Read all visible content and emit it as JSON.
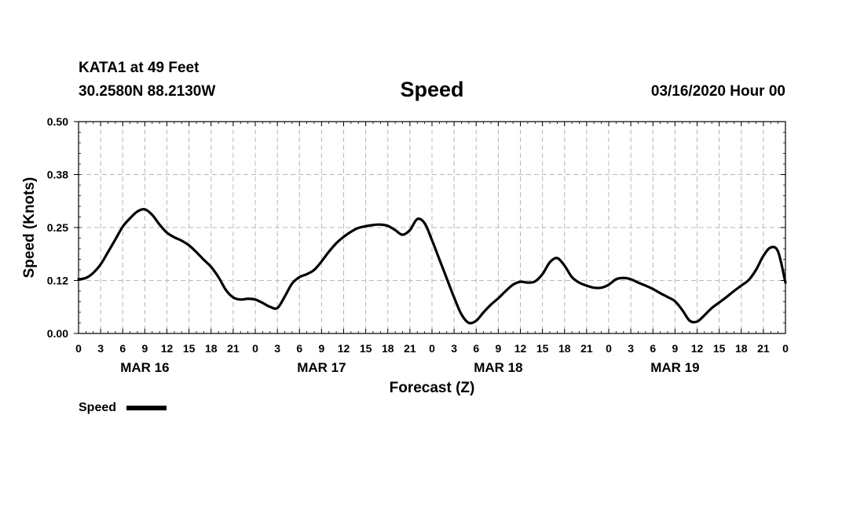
{
  "header": {
    "station": "KATA1 at 49 Feet",
    "coords": "30.2580N 88.2130W",
    "title": "Speed",
    "run": "03/16/2020 Hour 00"
  },
  "chart_data": {
    "type": "line",
    "title": "Speed",
    "xlabel": "Forecast (Z)",
    "ylabel": "Speed (Knots)",
    "ylim": [
      0,
      0.5
    ],
    "yticks": [
      "0.00",
      "0.12",
      "0.25",
      "0.38",
      "0.50"
    ],
    "ytick_values": [
      0,
      0.125,
      0.25,
      0.375,
      0.5
    ],
    "xlim_hours": [
      0,
      96
    ],
    "xticks": [
      "0",
      "3",
      "6",
      "9",
      "12",
      "15",
      "18",
      "21",
      "0",
      "3",
      "6",
      "9",
      "12",
      "15",
      "18",
      "21",
      "0",
      "3",
      "6",
      "9",
      "12",
      "15",
      "18",
      "21",
      "0",
      "3",
      "6",
      "9",
      "12",
      "15",
      "18",
      "21",
      "0"
    ],
    "date_labels": [
      {
        "label": "MAR 16",
        "hour": 9
      },
      {
        "label": "MAR 17",
        "hour": 33
      },
      {
        "label": "MAR 18",
        "hour": 57
      },
      {
        "label": "MAR 19",
        "hour": 81
      }
    ],
    "grid": true,
    "legend": {
      "placement": "bottom-left",
      "entries": [
        "Speed"
      ]
    },
    "series": [
      {
        "name": "Speed",
        "x": [
          0,
          1,
          2,
          3,
          4,
          5,
          6,
          7,
          8,
          9,
          10,
          11,
          12,
          13,
          14,
          15,
          16,
          17,
          18,
          19,
          20,
          21,
          22,
          23,
          24,
          25,
          26,
          27,
          28,
          29,
          30,
          31,
          32,
          33,
          34,
          35,
          36,
          37,
          38,
          39,
          40,
          41,
          42,
          43,
          44,
          45,
          46,
          47,
          48,
          49,
          50,
          51,
          52,
          53,
          54,
          55,
          56,
          57,
          58,
          59,
          60,
          61,
          62,
          63,
          64,
          65,
          66,
          67,
          68,
          69,
          70,
          71,
          72,
          73,
          74,
          75,
          76,
          77,
          78,
          79,
          80,
          81,
          82,
          83,
          84,
          85,
          86,
          87,
          88,
          89,
          90,
          91,
          92,
          93,
          94,
          95,
          96
        ],
        "values": [
          0.128,
          0.131,
          0.143,
          0.163,
          0.192,
          0.222,
          0.252,
          0.272,
          0.288,
          0.293,
          0.28,
          0.257,
          0.238,
          0.227,
          0.219,
          0.208,
          0.192,
          0.174,
          0.157,
          0.133,
          0.103,
          0.085,
          0.08,
          0.082,
          0.08,
          0.072,
          0.063,
          0.06,
          0.087,
          0.118,
          0.133,
          0.14,
          0.15,
          0.17,
          0.193,
          0.213,
          0.228,
          0.24,
          0.249,
          0.253,
          0.256,
          0.257,
          0.254,
          0.244,
          0.233,
          0.244,
          0.27,
          0.26,
          0.22,
          0.175,
          0.13,
          0.085,
          0.045,
          0.025,
          0.03,
          0.05,
          0.068,
          0.083,
          0.1,
          0.115,
          0.122,
          0.12,
          0.123,
          0.14,
          0.168,
          0.178,
          0.16,
          0.133,
          0.12,
          0.113,
          0.108,
          0.108,
          0.115,
          0.128,
          0.131,
          0.128,
          0.12,
          0.113,
          0.105,
          0.095,
          0.086,
          0.076,
          0.055,
          0.03,
          0.028,
          0.043,
          0.06,
          0.073,
          0.086,
          0.1,
          0.113,
          0.126,
          0.15,
          0.183,
          0.203,
          0.193,
          0.12
        ]
      }
    ]
  }
}
